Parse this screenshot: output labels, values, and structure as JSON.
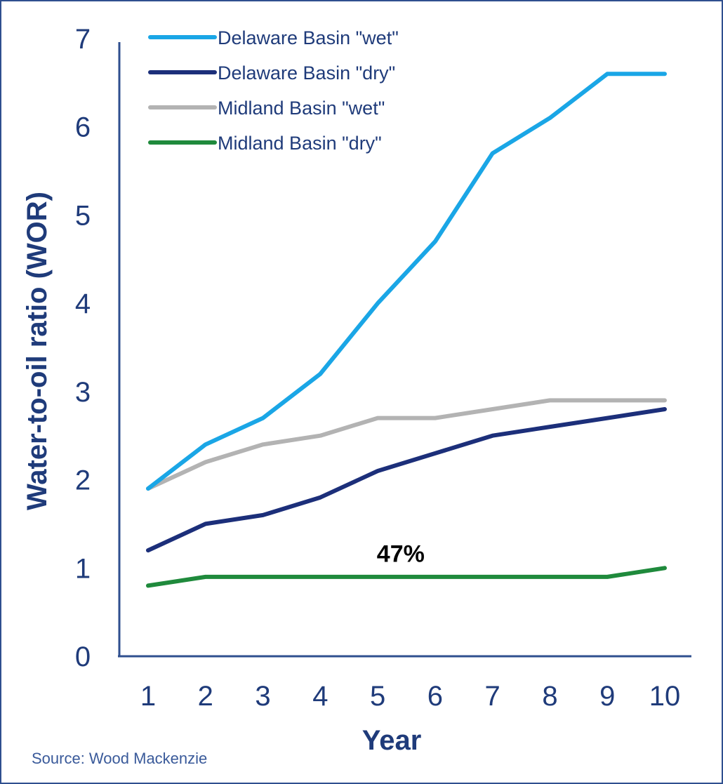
{
  "chart_data": {
    "type": "line",
    "title": "",
    "xlabel": "Year",
    "ylabel": "Water-to-oil ratio (WOR)",
    "x": [
      1,
      2,
      3,
      4,
      5,
      6,
      7,
      8,
      9,
      10
    ],
    "x_tick_labels": [
      "1",
      "2",
      "3",
      "4",
      "5",
      "6",
      "7",
      "8",
      "9",
      "10"
    ],
    "y_tick_labels": [
      "0",
      "1",
      "2",
      "3",
      "4",
      "5",
      "6",
      "7"
    ],
    "ylim": [
      0,
      7
    ],
    "xlim": [
      1,
      10
    ],
    "grid": false,
    "legend_position": "top-left",
    "series": [
      {
        "name": "Delaware Basin \"wet\"",
        "color": "#1aa6e6",
        "values": [
          1.9,
          2.4,
          2.7,
          3.2,
          4.0,
          4.7,
          5.7,
          6.1,
          6.6,
          6.6
        ]
      },
      {
        "name": "Delaware Basin \"dry\"",
        "color": "#1c2f7a",
        "values": [
          1.2,
          1.5,
          1.6,
          1.8,
          2.1,
          2.3,
          2.5,
          2.6,
          2.7,
          2.8
        ]
      },
      {
        "name": "Midland Basin \"wet\"",
        "color": "#b3b3b3",
        "values": [
          1.9,
          2.2,
          2.4,
          2.5,
          2.7,
          2.7,
          2.8,
          2.9,
          2.9,
          2.9
        ]
      },
      {
        "name": "Midland Basin \"dry\"",
        "color": "#1f8a3c",
        "values": [
          0.8,
          0.9,
          0.9,
          0.9,
          0.9,
          0.9,
          0.9,
          0.9,
          0.9,
          1.0
        ]
      }
    ],
    "annotations": [
      {
        "text": "47%",
        "x": 5.4,
        "y": 1.07
      }
    ],
    "source": "Source: Wood Mackenzie",
    "axis_color": "#2f4f8f"
  }
}
